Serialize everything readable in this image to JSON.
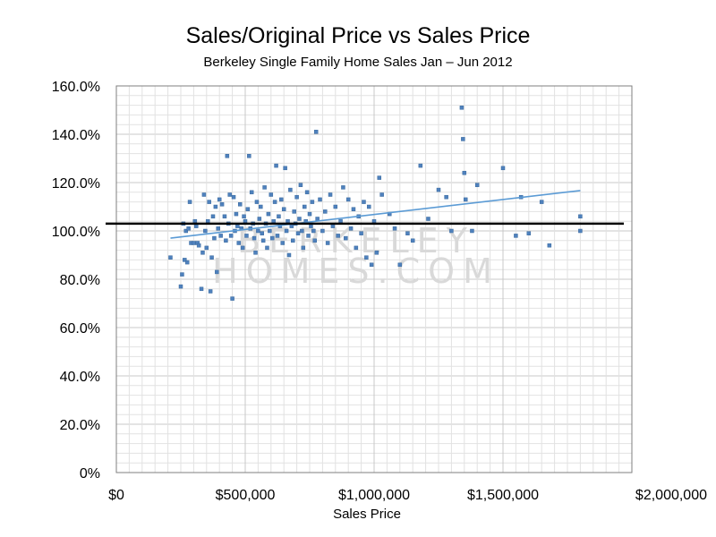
{
  "chart_data": {
    "type": "scatter",
    "title": "Sales/Original Price vs Sales Price",
    "subtitle": "Berkeley Single Family Home Sales Jan – Jun 2012",
    "xlabel": "Sales Price",
    "ylabel": "",
    "xlim": [
      0,
      2000000
    ],
    "ylim": [
      0,
      1.6
    ],
    "x_ticks": [
      "$0",
      "$500,000",
      "$1,000,000",
      "$1,500,000",
      "$2,000,000"
    ],
    "y_ticks": [
      "0%",
      "20.0%",
      "40.0%",
      "60.0%",
      "80.0%",
      "100.0%",
      "120.0%",
      "140.0%",
      "160.0%"
    ],
    "grid": true,
    "watermark": [
      "BERKELEY",
      "HOMES.COM"
    ],
    "reference_line": {
      "y": 1.03,
      "color": "#000000"
    },
    "trendline": {
      "x": [
        210000,
        1800000
      ],
      "y": [
        0.97,
        1.167
      ],
      "color": "#5b9bd5"
    },
    "marker_color": "#4f81bd",
    "series": [
      {
        "points": [
          [
            210000,
            0.89
          ],
          [
            250000,
            0.77
          ],
          [
            255000,
            0.82
          ],
          [
            260000,
            1.03
          ],
          [
            265000,
            0.88
          ],
          [
            270000,
            1.0
          ],
          [
            275000,
            0.87
          ],
          [
            280000,
            1.01
          ],
          [
            285000,
            1.12
          ],
          [
            290000,
            0.95
          ],
          [
            300000,
            0.95
          ],
          [
            305000,
            1.04
          ],
          [
            310000,
            1.02
          ],
          [
            315000,
            0.95
          ],
          [
            320000,
            0.94
          ],
          [
            330000,
            0.76
          ],
          [
            335000,
            0.91
          ],
          [
            340000,
            1.15
          ],
          [
            345000,
            1.0
          ],
          [
            350000,
            0.93
          ],
          [
            355000,
            1.04
          ],
          [
            360000,
            1.12
          ],
          [
            365000,
            0.75
          ],
          [
            370000,
            0.89
          ],
          [
            375000,
            1.06
          ],
          [
            380000,
            0.97
          ],
          [
            385000,
            1.1
          ],
          [
            390000,
            0.83
          ],
          [
            395000,
            1.01
          ],
          [
            400000,
            1.13
          ],
          [
            405000,
            0.98
          ],
          [
            410000,
            1.11
          ],
          [
            420000,
            1.06
          ],
          [
            425000,
            0.96
          ],
          [
            430000,
            1.31
          ],
          [
            435000,
            1.03
          ],
          [
            440000,
            1.15
          ],
          [
            445000,
            0.98
          ],
          [
            450000,
            0.72
          ],
          [
            455000,
            1.14
          ],
          [
            460000,
            1.0
          ],
          [
            465000,
            1.07
          ],
          [
            470000,
            1.02
          ],
          [
            475000,
            0.95
          ],
          [
            480000,
            1.11
          ],
          [
            485000,
            1.01
          ],
          [
            490000,
            0.93
          ],
          [
            495000,
            1.06
          ],
          [
            500000,
            1.04
          ],
          [
            505000,
            0.98
          ],
          [
            510000,
            1.09
          ],
          [
            515000,
            1.31
          ],
          [
            520000,
            1.01
          ],
          [
            525000,
            1.16
          ],
          [
            530000,
            1.03
          ],
          [
            535000,
            0.97
          ],
          [
            540000,
            0.91
          ],
          [
            545000,
            1.12
          ],
          [
            550000,
            1.0
          ],
          [
            555000,
            1.05
          ],
          [
            560000,
            1.1
          ],
          [
            565000,
            0.99
          ],
          [
            570000,
            0.96
          ],
          [
            575000,
            1.18
          ],
          [
            580000,
            1.03
          ],
          [
            585000,
            0.93
          ],
          [
            590000,
            1.07
          ],
          [
            595000,
            1.0
          ],
          [
            600000,
            1.15
          ],
          [
            605000,
            0.97
          ],
          [
            610000,
            1.04
          ],
          [
            615000,
            1.12
          ],
          [
            620000,
            1.27
          ],
          [
            625000,
            0.98
          ],
          [
            630000,
            1.06
          ],
          [
            635000,
            1.02
          ],
          [
            640000,
            1.13
          ],
          [
            645000,
            0.95
          ],
          [
            650000,
            1.09
          ],
          [
            655000,
            1.26
          ],
          [
            660000,
            1.0
          ],
          [
            665000,
            1.04
          ],
          [
            670000,
            0.9
          ],
          [
            675000,
            1.17
          ],
          [
            680000,
            1.02
          ],
          [
            685000,
            0.96
          ],
          [
            690000,
            1.08
          ],
          [
            695000,
            1.03
          ],
          [
            700000,
            1.14
          ],
          [
            705000,
            0.99
          ],
          [
            710000,
            1.05
          ],
          [
            715000,
            1.19
          ],
          [
            720000,
            1.0
          ],
          [
            725000,
            0.93
          ],
          [
            730000,
            1.1
          ],
          [
            735000,
            1.04
          ],
          [
            740000,
            1.16
          ],
          [
            745000,
            0.98
          ],
          [
            750000,
            1.07
          ],
          [
            755000,
            1.02
          ],
          [
            760000,
            1.12
          ],
          [
            765000,
            1.0
          ],
          [
            770000,
            0.96
          ],
          [
            775000,
            1.41
          ],
          [
            780000,
            1.05
          ],
          [
            790000,
            1.13
          ],
          [
            800000,
            1.0
          ],
          [
            810000,
            1.08
          ],
          [
            820000,
            0.95
          ],
          [
            830000,
            1.15
          ],
          [
            840000,
            1.02
          ],
          [
            850000,
            1.1
          ],
          [
            860000,
            0.98
          ],
          [
            870000,
            1.04
          ],
          [
            880000,
            1.18
          ],
          [
            890000,
            0.97
          ],
          [
            900000,
            1.13
          ],
          [
            910000,
            1.01
          ],
          [
            920000,
            1.09
          ],
          [
            930000,
            0.93
          ],
          [
            940000,
            1.06
          ],
          [
            950000,
            0.99
          ],
          [
            960000,
            1.12
          ],
          [
            970000,
            0.89
          ],
          [
            980000,
            1.1
          ],
          [
            990000,
            0.86
          ],
          [
            1000000,
            1.04
          ],
          [
            1010000,
            0.91
          ],
          [
            1020000,
            1.22
          ],
          [
            1030000,
            1.15
          ],
          [
            1060000,
            1.07
          ],
          [
            1080000,
            1.01
          ],
          [
            1100000,
            0.86
          ],
          [
            1130000,
            0.99
          ],
          [
            1150000,
            0.96
          ],
          [
            1180000,
            1.27
          ],
          [
            1210000,
            1.05
          ],
          [
            1250000,
            1.17
          ],
          [
            1280000,
            1.14
          ],
          [
            1300000,
            1.0
          ],
          [
            1340000,
            1.51
          ],
          [
            1345000,
            1.38
          ],
          [
            1350000,
            1.24
          ],
          [
            1355000,
            1.13
          ],
          [
            1380000,
            1.0
          ],
          [
            1400000,
            1.19
          ],
          [
            1500000,
            1.26
          ],
          [
            1550000,
            0.98
          ],
          [
            1570000,
            1.14
          ],
          [
            1600000,
            0.99
          ],
          [
            1650000,
            1.12
          ],
          [
            1680000,
            0.94
          ],
          [
            1800000,
            1.06
          ],
          [
            1800000,
            1.0
          ]
        ]
      }
    ]
  }
}
